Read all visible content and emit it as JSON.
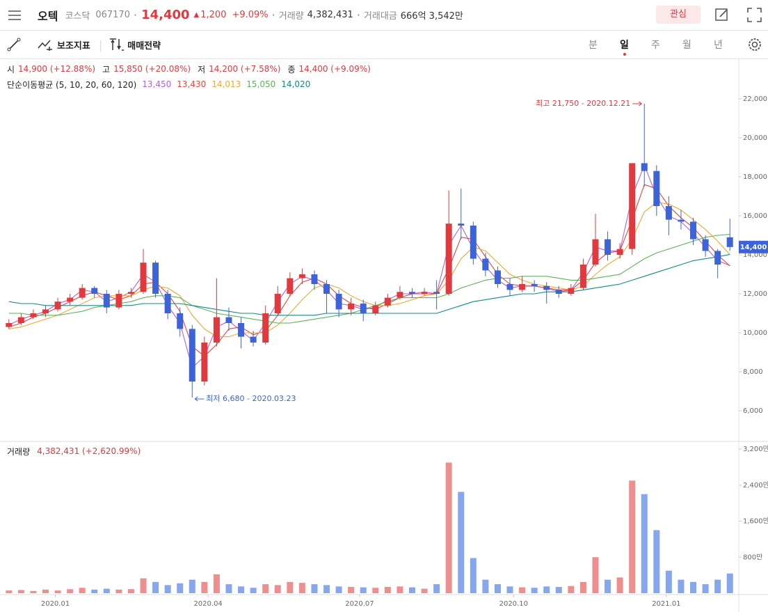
{
  "header": {
    "name": "오텍",
    "market": "코스닥",
    "code": "067170",
    "price": "14,400",
    "change": "1,200",
    "change_pct": "+9.09%",
    "volume_label": "거래량",
    "volume": "4,382,431",
    "amount_label": "거래대금",
    "amount": "666억 3,542만",
    "watch_button": "관심"
  },
  "toolbar": {
    "indicators": "보조지표",
    "strategy": "매매전략",
    "periods": [
      "분",
      "일",
      "주",
      "월",
      "년"
    ]
  },
  "info": {
    "open_label": "시",
    "open": "14,900 (+12.88%)",
    "high_label": "고",
    "high": "15,850 (+20.08%)",
    "low_label": "저",
    "low": "14,200 (+7.58%)",
    "close_label": "종",
    "close": "14,400 (+9.09%)",
    "ma_title": "단순이동평균 (5, 10, 20, 60, 120)"
  },
  "chart_data": [
    {
      "type": "candlestick",
      "categories": [
        null,
        null,
        null,
        null,
        null,
        null,
        null,
        null,
        null,
        null,
        null,
        null,
        null,
        null,
        null,
        null,
        null,
        null,
        null,
        null,
        null,
        null,
        null,
        null,
        null,
        null,
        null,
        null,
        null,
        null,
        null,
        null,
        null,
        null,
        null,
        null,
        null,
        null,
        null,
        null,
        null,
        null,
        null,
        null,
        null,
        null,
        null,
        null,
        null,
        null,
        null,
        null,
        null,
        null,
        null,
        null,
        null,
        null,
        null,
        null
      ],
      "open": [
        10300,
        10500,
        10800,
        11000,
        11200,
        11600,
        11800,
        12300,
        12000,
        11300,
        12000,
        12100,
        13600,
        12000,
        11000,
        10200,
        7500,
        9500,
        10800,
        10500,
        9800,
        9500,
        11000,
        12000,
        12800,
        13000,
        12500,
        12000,
        11200,
        11500,
        11000,
        11400,
        11800,
        12100,
        12000,
        12100,
        12000,
        15600,
        15500,
        13800,
        13200,
        12500,
        12200,
        12500,
        12400,
        12200,
        12000,
        12300,
        13500,
        14800,
        14000,
        14300,
        18700,
        18300,
        16500,
        15800,
        15700,
        14800,
        14200,
        14900
      ],
      "high": [
        10700,
        11000,
        11200,
        11400,
        11800,
        12000,
        12500,
        12400,
        12200,
        12200,
        12300,
        14300,
        13700,
        12200,
        11300,
        10400,
        9800,
        12800,
        11300,
        10800,
        10100,
        11400,
        12400,
        13100,
        13300,
        13200,
        12700,
        12200,
        11800,
        11700,
        11600,
        12000,
        12400,
        12300,
        12300,
        12700,
        17300,
        17400,
        15700,
        14100,
        13400,
        12800,
        12900,
        12700,
        12600,
        12400,
        12500,
        13800,
        16100,
        15200,
        14600,
        18700,
        21750,
        18600,
        17000,
        16300,
        15900,
        15000,
        14300,
        15850
      ],
      "low": [
        10200,
        10400,
        10700,
        10800,
        11100,
        11400,
        11700,
        11800,
        11000,
        11200,
        11800,
        12000,
        11800,
        10700,
        9800,
        6680,
        7300,
        9300,
        10100,
        9200,
        9300,
        9400,
        10900,
        11900,
        12500,
        12200,
        11000,
        10800,
        10900,
        10600,
        10900,
        11300,
        11700,
        11800,
        11900,
        11200,
        11900,
        14800,
        13500,
        12900,
        12300,
        11900,
        12100,
        12100,
        11500,
        11800,
        11900,
        12200,
        13400,
        13700,
        13800,
        14000,
        17500,
        16000,
        15000,
        15300,
        14500,
        13900,
        12800,
        14200
      ],
      "close": [
        10500,
        10800,
        11000,
        11200,
        11600,
        11800,
        12300,
        12000,
        11300,
        12000,
        12100,
        13600,
        12000,
        11000,
        10200,
        7500,
        9500,
        10800,
        10500,
        9800,
        9500,
        11000,
        12000,
        12800,
        13000,
        12500,
        12000,
        11200,
        11500,
        11000,
        11400,
        11800,
        12100,
        12000,
        12100,
        12000,
        15600,
        15500,
        13800,
        13200,
        12500,
        12200,
        12500,
        12400,
        12200,
        12000,
        12300,
        13500,
        14800,
        14000,
        14300,
        18700,
        18300,
        16500,
        15800,
        15700,
        14800,
        14200,
        13500,
        14400
      ],
      "up_color": "#e0393e",
      "down_color": "#3c64d8",
      "series": [
        {
          "color": "#b55fd8",
          "label": "13,450",
          "values": [
            10400,
            10700,
            10900,
            11100,
            11500,
            11700,
            12200,
            12100,
            11600,
            11800,
            12100,
            13000,
            12600,
            11400,
            10500,
            8200,
            8800,
            10300,
            10600,
            10100,
            9600,
            10500,
            11600,
            12500,
            12900,
            12700,
            12200,
            11500,
            11400,
            11200,
            11300,
            11700,
            12000,
            12000,
            12100,
            12000,
            14500,
            15500,
            14300,
            13400,
            12700,
            12300,
            12400,
            12400,
            12300,
            12100,
            12200,
            13100,
            14400,
            14200,
            14200,
            17000,
            18600,
            17000,
            16000,
            15700,
            15100,
            14400,
            13700,
            13450
          ]
        },
        {
          "color": "#e8453c",
          "label": "13,430",
          "values": [
            10300,
            10500,
            10800,
            11000,
            11300,
            11600,
            11900,
            12100,
            11900,
            11700,
            11900,
            12500,
            12600,
            12000,
            11100,
            9300,
            8800,
            9400,
            10200,
            10300,
            9900,
            10100,
            10900,
            11900,
            12600,
            12800,
            12500,
            11900,
            11500,
            11300,
            11200,
            11500,
            11800,
            12000,
            12000,
            12000,
            13300,
            14900,
            14800,
            13900,
            13000,
            12500,
            12400,
            12400,
            12300,
            12200,
            12200,
            12700,
            13600,
            14100,
            14200,
            15800,
            17600,
            17400,
            16500,
            15900,
            15400,
            14700,
            14000,
            13430
          ]
        },
        {
          "color": "#f0a830",
          "label": "14,013",
          "values": [
            10200,
            10300,
            10500,
            10700,
            10900,
            11200,
            11500,
            11800,
            11900,
            11900,
            11900,
            12200,
            12400,
            12300,
            11900,
            10900,
            10200,
            9800,
            9800,
            10000,
            10000,
            10000,
            10400,
            11000,
            11700,
            12300,
            12500,
            12300,
            11900,
            11600,
            11400,
            11400,
            11500,
            11700,
            11900,
            12000,
            12700,
            13800,
            14400,
            14200,
            13600,
            13000,
            12700,
            12500,
            12400,
            12300,
            12200,
            12400,
            13000,
            13500,
            13900,
            14800,
            16200,
            16700,
            16600,
            16300,
            15800,
            15300,
            14700,
            14013
          ]
        },
        {
          "color": "#5cb35a",
          "label": "15,050",
          "values": [
            11000,
            11000,
            10900,
            10900,
            10900,
            11000,
            11100,
            11300,
            11400,
            11500,
            11600,
            11800,
            11900,
            11900,
            11800,
            11400,
            11200,
            11000,
            10900,
            10800,
            10700,
            10600,
            10500,
            10500,
            10600,
            10700,
            10800,
            10900,
            11000,
            11200,
            11400,
            11600,
            11800,
            11800,
            11800,
            11800,
            12000,
            12300,
            12500,
            12700,
            12800,
            12800,
            12900,
            12900,
            12900,
            12800,
            12700,
            12700,
            12800,
            12900,
            13000,
            13400,
            13800,
            14100,
            14300,
            14500,
            14700,
            14900,
            15000,
            15050
          ]
        },
        {
          "color": "#11898a",
          "label": "14,020",
          "values": [
            11600,
            11500,
            11500,
            11400,
            11400,
            11400,
            11400,
            11400,
            11400,
            11400,
            11400,
            11500,
            11500,
            11500,
            11500,
            11400,
            11300,
            11200,
            11100,
            11000,
            11000,
            10900,
            10900,
            10900,
            10900,
            10900,
            11000,
            11000,
            11000,
            11000,
            11000,
            11000,
            11000,
            11000,
            11000,
            11000,
            11200,
            11400,
            11600,
            11700,
            11800,
            11900,
            12000,
            12000,
            12100,
            12100,
            12100,
            12200,
            12300,
            12400,
            12500,
            12700,
            12900,
            13100,
            13300,
            13500,
            13700,
            13800,
            13900,
            14020
          ]
        }
      ],
      "ylim": [
        4464,
        24036
      ],
      "yticks": [
        {
          "value": 6000,
          "label": "6,000"
        },
        {
          "value": 8000,
          "label": "8,000"
        },
        {
          "value": 10000,
          "label": "10,000"
        },
        {
          "value": 12000,
          "label": "12,000"
        },
        {
          "value": 14000,
          "label": "14,000"
        },
        {
          "value": 16000,
          "label": "16,000"
        },
        {
          "value": 18000,
          "label": "18,000"
        },
        {
          "value": 20000,
          "label": "20,000"
        },
        {
          "value": 22000,
          "label": "22,000"
        }
      ],
      "current_price": {
        "value": 14400,
        "label": "14,400"
      },
      "max_label": "최고 21,750 - 2020.12.21",
      "min_label": "최저 6,680 - 2020.03.23"
    },
    {
      "type": "bar",
      "title": "거래량",
      "subtitle": "4,382,431 (+2,620.99%)",
      "values": [
        60,
        70,
        50,
        80,
        60,
        90,
        120,
        80,
        100,
        80,
        90,
        330,
        250,
        180,
        220,
        300,
        250,
        420,
        200,
        150,
        120,
        200,
        180,
        250,
        230,
        200,
        180,
        150,
        140,
        130,
        120,
        140,
        150,
        130,
        100,
        200,
        2900,
        2250,
        780,
        300,
        200,
        150,
        130,
        120,
        150,
        140,
        160,
        250,
        800,
        300,
        350,
        2500,
        2200,
        1400,
        500,
        300,
        250,
        200,
        300,
        438
      ],
      "up_color": "#ef8e8e",
      "down_color": "#86a6ee",
      "ylim": [
        0,
        3200
      ],
      "yticks": [
        {
          "value": 800,
          "label": "800만"
        },
        {
          "value": 1600,
          "label": "1,600만"
        },
        {
          "value": 2400,
          "label": "2,400만"
        },
        {
          "value": 3200,
          "label": "3,200만"
        }
      ],
      "xticks": [
        {
          "value": 3.8,
          "label": "2020.01"
        },
        {
          "value": 16.3,
          "label": "2020.04"
        },
        {
          "value": 28.7,
          "label": "2020.07"
        },
        {
          "value": 41.3,
          "label": "2020.10"
        },
        {
          "value": 53.8,
          "label": "2021.01"
        }
      ]
    }
  ]
}
